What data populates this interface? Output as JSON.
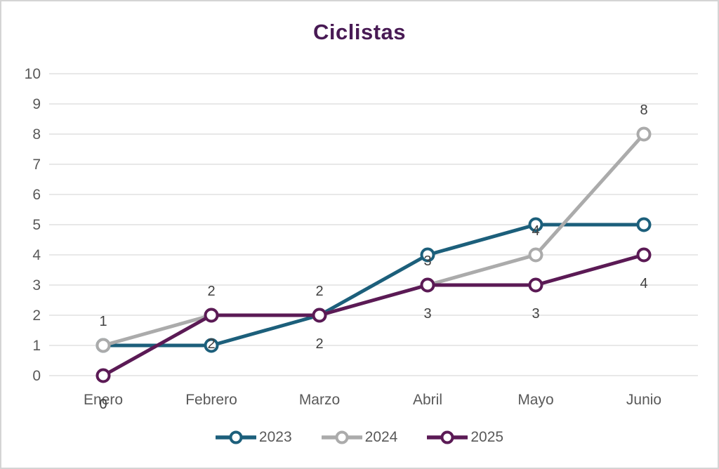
{
  "chart_data": {
    "type": "line",
    "title": "Ciclistas",
    "categories": [
      "Enero",
      "Febrero",
      "Marzo",
      "Abril",
      "Mayo",
      "Junio"
    ],
    "series": [
      {
        "name": "2023",
        "color": "#1C5F7B",
        "values": [
          1,
          1,
          2,
          4,
          5,
          5
        ],
        "data_labels": null,
        "label_position": null
      },
      {
        "name": "2024",
        "color": "#ABABAB",
        "values": [
          1,
          2,
          2,
          3,
          4,
          8
        ],
        "data_labels": [
          "1",
          "2",
          "2",
          "3",
          "4",
          "8"
        ],
        "label_position": "above"
      },
      {
        "name": "2025",
        "color": "#5B1A55",
        "values": [
          0,
          2,
          2,
          3,
          3,
          4
        ],
        "data_labels": [
          "0",
          "2",
          "2",
          "3",
          "3",
          "4"
        ],
        "label_position": "below"
      }
    ],
    "y_axis": {
      "min": 0,
      "max": 10,
      "ticks": [
        "0",
        "1",
        "2",
        "3",
        "4",
        "5",
        "6",
        "7",
        "8",
        "9",
        "10"
      ]
    },
    "grid": true,
    "legend_position": "bottom",
    "legend": [
      "2023",
      "2024",
      "2025"
    ],
    "colors": {
      "title": "#481A54",
      "gridline": "#D9D9D9",
      "axis_text": "#595959",
      "data_label_text": "#404040",
      "background": "#FFFFFF",
      "border": "#D4D4D4"
    }
  }
}
